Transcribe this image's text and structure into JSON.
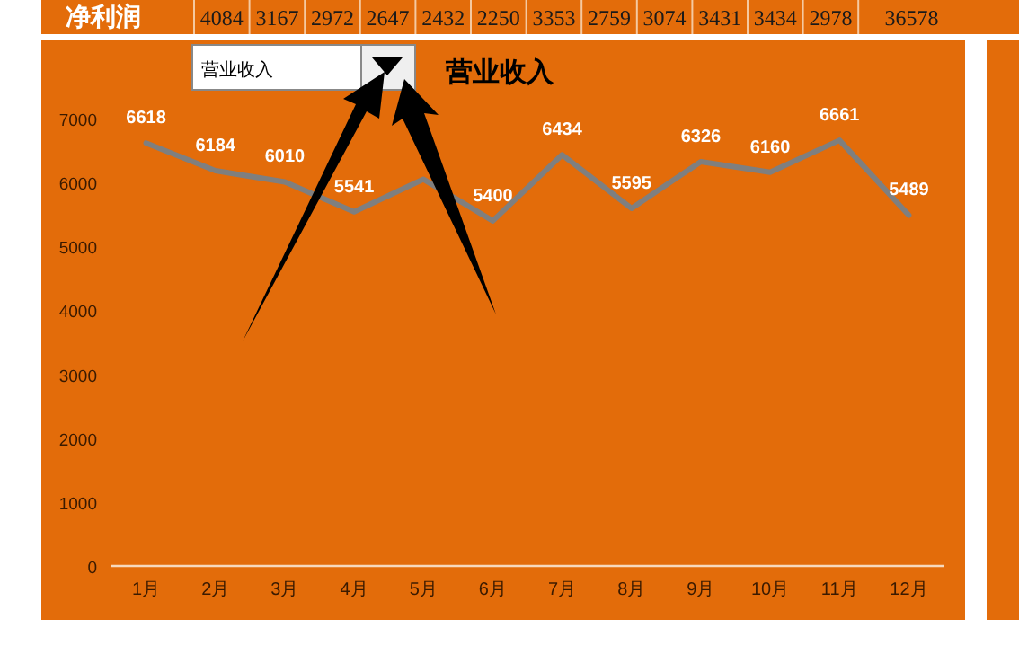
{
  "chart_data": {
    "type": "line",
    "title": "营业收入",
    "categories": [
      "1月",
      "2月",
      "3月",
      "4月",
      "5月",
      "6月",
      "7月",
      "8月",
      "9月",
      "10月",
      "11月",
      "12月"
    ],
    "series": [
      {
        "color": "#7f7f7f",
        "values": [
          6618,
          6184,
          6010,
          5541,
          6050,
          5400,
          6434,
          5595,
          6326,
          6160,
          6661,
          5489
        ],
        "value_labels": [
          "6618",
          "6184",
          "6010",
          "5541",
          null,
          "5400",
          "6434",
          "5595",
          "6326",
          "6160",
          "6661",
          "5489"
        ]
      }
    ],
    "ylim": [
      0,
      7000
    ],
    "yticks": [
      0,
      1000,
      2000,
      3000,
      4000,
      5000,
      6000,
      7000
    ],
    "grid": false,
    "marker": "none",
    "line_style": "solid",
    "annotations": [
      "净利润",
      "4084",
      "3167",
      "2972",
      "2647",
      "2432",
      "2250",
      "3353",
      "2759",
      "3074",
      "3431",
      "3434",
      "2978",
      "36578",
      "营业收入"
    ]
  }
}
